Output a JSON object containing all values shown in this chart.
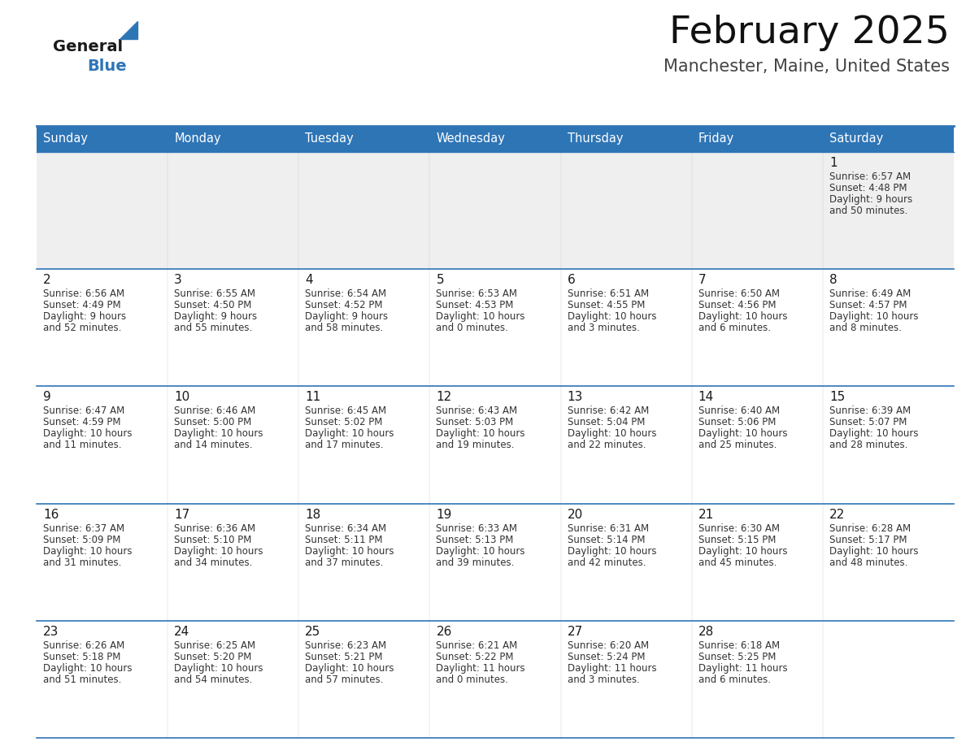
{
  "title": "February 2025",
  "subtitle": "Manchester, Maine, United States",
  "header_color": "#2E75B6",
  "header_text_color": "#FFFFFF",
  "cell_bg_color_alt": "#EFEFEF",
  "cell_bg_color": "#FFFFFF",
  "cell_border_color": "#2E75B6",
  "day_number_color": "#1a1a1a",
  "info_text_color": "#333333",
  "days_of_week": [
    "Sunday",
    "Monday",
    "Tuesday",
    "Wednesday",
    "Thursday",
    "Friday",
    "Saturday"
  ],
  "logo_general_color": "#1a1a1a",
  "logo_blue_color": "#2E75B6",
  "calendar_data": [
    [
      null,
      null,
      null,
      null,
      null,
      null,
      {
        "day": 1,
        "sunrise": "6:57 AM",
        "sunset": "4:48 PM",
        "daylight": "9 hours and 50 minutes."
      }
    ],
    [
      {
        "day": 2,
        "sunrise": "6:56 AM",
        "sunset": "4:49 PM",
        "daylight": "9 hours and 52 minutes."
      },
      {
        "day": 3,
        "sunrise": "6:55 AM",
        "sunset": "4:50 PM",
        "daylight": "9 hours and 55 minutes."
      },
      {
        "day": 4,
        "sunrise": "6:54 AM",
        "sunset": "4:52 PM",
        "daylight": "9 hours and 58 minutes."
      },
      {
        "day": 5,
        "sunrise": "6:53 AM",
        "sunset": "4:53 PM",
        "daylight": "10 hours and 0 minutes."
      },
      {
        "day": 6,
        "sunrise": "6:51 AM",
        "sunset": "4:55 PM",
        "daylight": "10 hours and 3 minutes."
      },
      {
        "day": 7,
        "sunrise": "6:50 AM",
        "sunset": "4:56 PM",
        "daylight": "10 hours and 6 minutes."
      },
      {
        "day": 8,
        "sunrise": "6:49 AM",
        "sunset": "4:57 PM",
        "daylight": "10 hours and 8 minutes."
      }
    ],
    [
      {
        "day": 9,
        "sunrise": "6:47 AM",
        "sunset": "4:59 PM",
        "daylight": "10 hours and 11 minutes."
      },
      {
        "day": 10,
        "sunrise": "6:46 AM",
        "sunset": "5:00 PM",
        "daylight": "10 hours and 14 minutes."
      },
      {
        "day": 11,
        "sunrise": "6:45 AM",
        "sunset": "5:02 PM",
        "daylight": "10 hours and 17 minutes."
      },
      {
        "day": 12,
        "sunrise": "6:43 AM",
        "sunset": "5:03 PM",
        "daylight": "10 hours and 19 minutes."
      },
      {
        "day": 13,
        "sunrise": "6:42 AM",
        "sunset": "5:04 PM",
        "daylight": "10 hours and 22 minutes."
      },
      {
        "day": 14,
        "sunrise": "6:40 AM",
        "sunset": "5:06 PM",
        "daylight": "10 hours and 25 minutes."
      },
      {
        "day": 15,
        "sunrise": "6:39 AM",
        "sunset": "5:07 PM",
        "daylight": "10 hours and 28 minutes."
      }
    ],
    [
      {
        "day": 16,
        "sunrise": "6:37 AM",
        "sunset": "5:09 PM",
        "daylight": "10 hours and 31 minutes."
      },
      {
        "day": 17,
        "sunrise": "6:36 AM",
        "sunset": "5:10 PM",
        "daylight": "10 hours and 34 minutes."
      },
      {
        "day": 18,
        "sunrise": "6:34 AM",
        "sunset": "5:11 PM",
        "daylight": "10 hours and 37 minutes."
      },
      {
        "day": 19,
        "sunrise": "6:33 AM",
        "sunset": "5:13 PM",
        "daylight": "10 hours and 39 minutes."
      },
      {
        "day": 20,
        "sunrise": "6:31 AM",
        "sunset": "5:14 PM",
        "daylight": "10 hours and 42 minutes."
      },
      {
        "day": 21,
        "sunrise": "6:30 AM",
        "sunset": "5:15 PM",
        "daylight": "10 hours and 45 minutes."
      },
      {
        "day": 22,
        "sunrise": "6:28 AM",
        "sunset": "5:17 PM",
        "daylight": "10 hours and 48 minutes."
      }
    ],
    [
      {
        "day": 23,
        "sunrise": "6:26 AM",
        "sunset": "5:18 PM",
        "daylight": "10 hours and 51 minutes."
      },
      {
        "day": 24,
        "sunrise": "6:25 AM",
        "sunset": "5:20 PM",
        "daylight": "10 hours and 54 minutes."
      },
      {
        "day": 25,
        "sunrise": "6:23 AM",
        "sunset": "5:21 PM",
        "daylight": "10 hours and 57 minutes."
      },
      {
        "day": 26,
        "sunrise": "6:21 AM",
        "sunset": "5:22 PM",
        "daylight": "11 hours and 0 minutes."
      },
      {
        "day": 27,
        "sunrise": "6:20 AM",
        "sunset": "5:24 PM",
        "daylight": "11 hours and 3 minutes."
      },
      {
        "day": 28,
        "sunrise": "6:18 AM",
        "sunset": "5:25 PM",
        "daylight": "11 hours and 6 minutes."
      },
      null
    ]
  ]
}
